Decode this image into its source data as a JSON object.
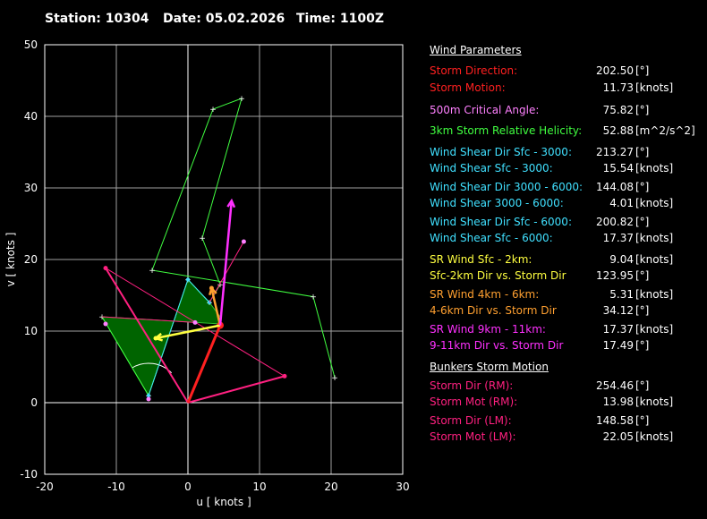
{
  "header": {
    "station": "Station: 10304",
    "date": "Date: 05.02.2026",
    "time": "Time: 1100Z"
  },
  "colors": {
    "red": "#ff2020",
    "pink": "#ff40ff",
    "green": "#40ff40",
    "cyan": "#40e0ff",
    "yellow": "#ffff40",
    "orange": "#ffa030",
    "magenta": "#ff30ff",
    "crimson": "#ff2080",
    "fill_green": "#006400"
  },
  "panel": {
    "title": "Wind Parameters",
    "rows": [
      {
        "label": "Storm Direction:",
        "value": "202.50",
        "unit": "[°]",
        "color": "#ff2020"
      },
      {
        "label": "Storm Motion:",
        "value": "11.73",
        "unit": "[knots]",
        "color": "#ff2020"
      },
      {
        "label": "500m Critical Angle:",
        "value": "75.82",
        "unit": "[°]",
        "color": "#ff80ff"
      },
      {
        "label": "3km Storm Relative Helicity:",
        "value": "52.88",
        "unit": "[m^2/s^2]",
        "color": "#40ff40"
      },
      {
        "label": "Wind Shear Dir Sfc - 3000:",
        "value": "213.27",
        "unit": "[°]",
        "color": "#40e0ff"
      },
      {
        "label": "Wind Shear Sfc - 3000:",
        "value": "15.54",
        "unit": "[knots]",
        "color": "#40e0ff"
      },
      {
        "label": "Wind Shear Dir 3000 - 6000:",
        "value": "144.08",
        "unit": "[°]",
        "color": "#40e0ff"
      },
      {
        "label": "Wind Shear 3000 - 6000:",
        "value": "4.01",
        "unit": "[knots]",
        "color": "#40e0ff"
      },
      {
        "label": "Wind Shear Dir Sfc - 6000:",
        "value": "200.82",
        "unit": "[°]",
        "color": "#40e0ff"
      },
      {
        "label": "Wind Shear Sfc - 6000:",
        "value": "17.37",
        "unit": "[knots]",
        "color": "#40e0ff"
      },
      {
        "label": "SR Wind Sfc - 2km:",
        "value": "9.04",
        "unit": "[knots]",
        "color": "#ffff40"
      },
      {
        "label": "Sfc-2km Dir vs. Storm Dir",
        "value": "123.95",
        "unit": "[°]",
        "color": "#ffff40"
      },
      {
        "label": "SR Wind 4km - 6km:",
        "value": "5.31",
        "unit": "[knots]",
        "color": "#ffa030"
      },
      {
        "label": "4-6km Dir vs. Storm Dir",
        "value": "34.12",
        "unit": "[°]",
        "color": "#ffa030"
      },
      {
        "label": "SR Wind 9km - 11km:",
        "value": "17.37",
        "unit": "[knots]",
        "color": "#ff30ff"
      },
      {
        "label": "9-11km Dir vs. Storm Dir",
        "value": "17.49",
        "unit": "[°]",
        "color": "#ff30ff"
      }
    ],
    "bunkers_title": "Bunkers Storm Motion",
    "bunkers": [
      {
        "label": "Storm Dir (RM):",
        "value": "254.46",
        "unit": "[°]",
        "color": "#ff2080"
      },
      {
        "label": "Storm Mot (RM):",
        "value": "13.98",
        "unit": "[knots]",
        "color": "#ff2080"
      },
      {
        "label": "Storm Dir (LM):",
        "value": "148.58",
        "unit": "[°]",
        "color": "#ff2080"
      },
      {
        "label": "Storm Mot (LM):",
        "value": "22.05",
        "unit": "[knots]",
        "color": "#ff2080"
      }
    ]
  },
  "chart_data": {
    "type": "line",
    "title": "",
    "xlabel": "u  [ knots ]",
    "ylabel": "v  [ knots ]",
    "xlim": [
      -20,
      30
    ],
    "ylim": [
      -10,
      50
    ],
    "xticks": [
      -20,
      -10,
      0,
      10,
      20,
      30
    ],
    "yticks": [
      -10,
      0,
      10,
      20,
      30,
      40,
      50
    ],
    "grid": true,
    "hodograph": [
      {
        "x": -12,
        "y": 12
      },
      {
        "x": -5.5,
        "y": 1
      },
      {
        "x": 0,
        "y": 17.2
      },
      {
        "x": 3,
        "y": 14
      },
      {
        "x": 4.5,
        "y": 16.5
      },
      {
        "x": 2,
        "y": 23
      },
      {
        "x": 7.5,
        "y": 42.5
      },
      {
        "x": 3.5,
        "y": 41
      },
      {
        "x": -5,
        "y": 18.5
      },
      {
        "x": 17.5,
        "y": 14.8
      },
      {
        "x": 20.5,
        "y": 3.5
      }
    ],
    "srh_area": [
      {
        "x": -12,
        "y": 12
      },
      {
        "x": 4.5,
        "y": 11
      },
      {
        "x": 4.5,
        "y": 12
      },
      {
        "x": 3,
        "y": 14
      },
      {
        "x": 0,
        "y": 17.2
      },
      {
        "x": -5.5,
        "y": 1
      }
    ],
    "storm_motion": {
      "x": 4.5,
      "y": 10.8
    },
    "bunkers_rm": {
      "x": 13.5,
      "y": 3.7
    },
    "bunkers_lm": {
      "x": -11.5,
      "y": 18.8
    },
    "sr_sfc_2km": {
      "x": -4.5,
      "y": 9.0
    },
    "sr_4_6km": {
      "x": 3.3,
      "y": 16.0
    },
    "sr_9_11km": {
      "x": 6.1,
      "y": 28.2
    },
    "cyan_shear": [
      {
        "x": -5.5,
        "y": 1
      },
      {
        "x": 0,
        "y": 17.2
      },
      {
        "x": 3,
        "y": 14
      }
    ],
    "pink_markers": [
      {
        "x": -11.5,
        "y": 11.0
      },
      {
        "x": -5.5,
        "y": 0.5
      },
      {
        "x": 1,
        "y": 11.2
      },
      {
        "x": 7.8,
        "y": 22.5
      }
    ],
    "pink_lines": [
      [
        {
          "x": -12,
          "y": 12
        },
        {
          "x": 1,
          "y": 11.2
        }
      ],
      [
        {
          "x": 3,
          "y": 14
        },
        {
          "x": 7.8,
          "y": 22.5
        }
      ],
      [
        {
          "x": -11.5,
          "y": 18.8
        },
        {
          "x": 13.5,
          "y": 3.7
        }
      ]
    ],
    "critical_angle_arc": {
      "center": {
        "x": -5.5,
        "y": 1
      },
      "radius": 4.5
    }
  }
}
